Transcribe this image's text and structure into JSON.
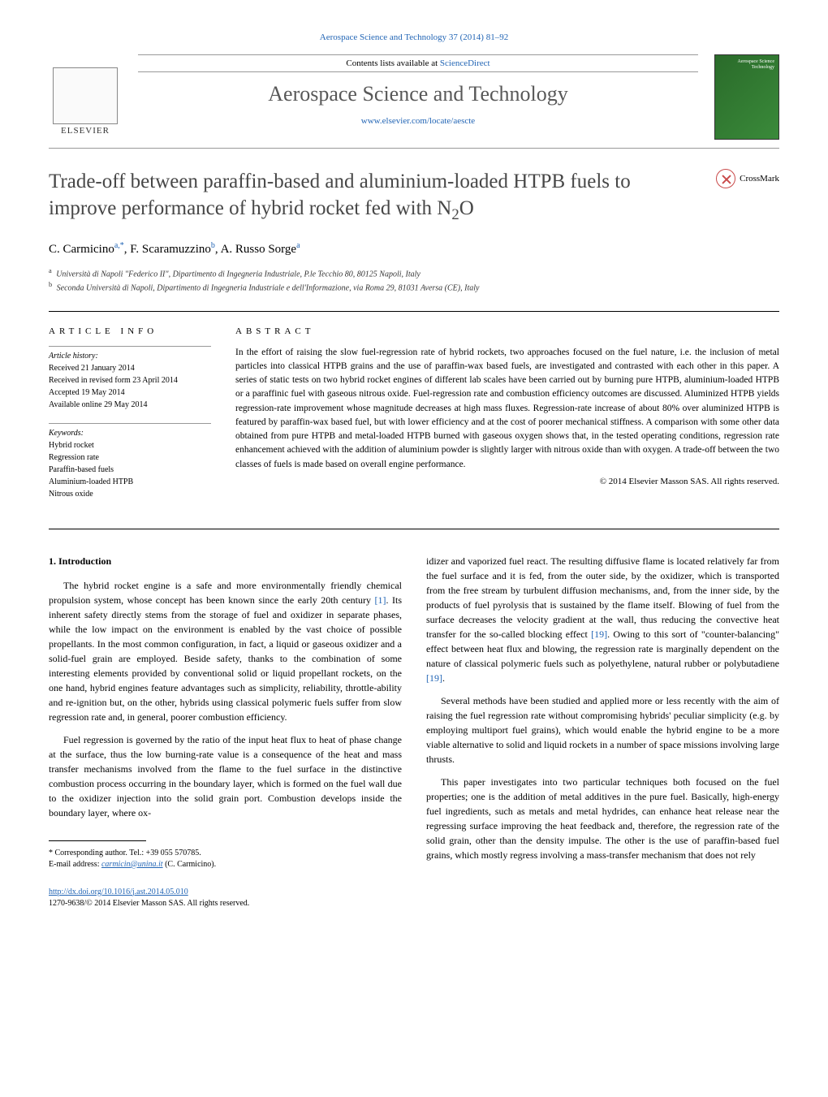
{
  "header": {
    "citation": "Aerospace Science and Technology 37 (2014) 81–92",
    "contents_text": "Contents lists available at ",
    "contents_link": "ScienceDirect",
    "journal_name": "Aerospace Science and Technology",
    "journal_url": "www.elsevier.com/locate/aescte",
    "elsevier_label": "ELSEVIER",
    "cover_label": "Aerospace Science Technology"
  },
  "article": {
    "title_html": "Trade-off between paraffin-based and aluminium-loaded HTPB fuels to improve performance of hybrid rocket fed with N₂O",
    "crossmark_label": "CrossMark",
    "authors_html": "C. Carmicino",
    "author_sup_a": "a,",
    "author_star": "*",
    "author2": ", F. Scaramuzzino",
    "author_sup_b": "b",
    "author3": ", A. Russo Sorge",
    "author_sup_a2": "a",
    "affiliations": {
      "a": "Università di Napoli \"Federico II\", Dipartimento di Ingegneria Industriale, P.le Tecchio 80, 80125 Napoli, Italy",
      "b": "Seconda Università di Napoli, Dipartimento di Ingegneria Industriale e dell'Informazione, via Roma 29, 81031 Aversa (CE), Italy"
    }
  },
  "info": {
    "label": "ARTICLE INFO",
    "history_label": "Article history:",
    "received": "Received 21 January 2014",
    "revised": "Received in revised form 23 April 2014",
    "accepted": "Accepted 19 May 2014",
    "online": "Available online 29 May 2014",
    "keywords_label": "Keywords:",
    "keywords": [
      "Hybrid rocket",
      "Regression rate",
      "Paraffin-based fuels",
      "Aluminium-loaded HTPB",
      "Nitrous oxide"
    ]
  },
  "abstract": {
    "label": "ABSTRACT",
    "text": "In the effort of raising the slow fuel-regression rate of hybrid rockets, two approaches focused on the fuel nature, i.e. the inclusion of metal particles into classical HTPB grains and the use of paraffin-wax based fuels, are investigated and contrasted with each other in this paper. A series of static tests on two hybrid rocket engines of different lab scales have been carried out by burning pure HTPB, aluminium-loaded HTPB or a paraffinic fuel with gaseous nitrous oxide. Fuel-regression rate and combustion efficiency outcomes are discussed. Aluminized HTPB yields regression-rate improvement whose magnitude decreases at high mass fluxes. Regression-rate increase of about 80% over aluminized HTPB is featured by paraffin-wax based fuel, but with lower efficiency and at the cost of poorer mechanical stiffness. A comparison with some other data obtained from pure HTPB and metal-loaded HTPB burned with gaseous oxygen shows that, in the tested operating conditions, regression rate enhancement achieved with the addition of aluminium powder is slightly larger with nitrous oxide than with oxygen. A trade-off between the two classes of fuels is made based on overall engine performance.",
    "copyright": "© 2014 Elsevier Masson SAS. All rights reserved."
  },
  "body": {
    "section_num": "1. Introduction",
    "col1_p1": "The hybrid rocket engine is a safe and more environmentally friendly chemical propulsion system, whose concept has been known since the early 20th century [1]. Its inherent safety directly stems from the storage of fuel and oxidizer in separate phases, while the low impact on the environment is enabled by the vast choice of possible propellants. In the most common configuration, in fact, a liquid or gaseous oxidizer and a solid-fuel grain are employed. Beside safety, thanks to the combination of some interesting elements provided by conventional solid or liquid propellant rockets, on the one hand, hybrid engines feature advantages such as simplicity, reliability, throttle-ability and re-ignition but, on the other, hybrids using classical polymeric fuels suffer from slow regression rate and, in general, poorer combustion efficiency.",
    "col1_p2": "Fuel regression is governed by the ratio of the input heat flux to heat of phase change at the surface, thus the low burning-rate value is a consequence of the heat and mass transfer mechanisms involved from the flame to the fuel surface in the distinctive combustion process occurring in the boundary layer, which is formed on the fuel wall due to the oxidizer injection into the solid grain port. Combustion develops inside the boundary layer, where ox-",
    "col2_p1": "idizer and vaporized fuel react. The resulting diffusive flame is located relatively far from the fuel surface and it is fed, from the outer side, by the oxidizer, which is transported from the free stream by turbulent diffusion mechanisms, and, from the inner side, by the products of fuel pyrolysis that is sustained by the flame itself. Blowing of fuel from the surface decreases the velocity gradient at the wall, thus reducing the convective heat transfer for the so-called blocking effect [19]. Owing to this sort of \"counter-balancing\" effect between heat flux and blowing, the regression rate is marginally dependent on the nature of classical polymeric fuels such as polyethylene, natural rubber or polybutadiene [19].",
    "col2_p2": "Several methods have been studied and applied more or less recently with the aim of raising the fuel regression rate without compromising hybrids' peculiar simplicity (e.g. by employing multiport fuel grains), which would enable the hybrid engine to be a more viable alternative to solid and liquid rockets in a number of space missions involving large thrusts.",
    "col2_p3": "This paper investigates into two particular techniques both focused on the fuel properties; one is the addition of metal additives in the pure fuel. Basically, high-energy fuel ingredients, such as metals and metal hydrides, can enhance heat release near the regressing surface improving the heat feedback and, therefore, the regression rate of the solid grain, other than the density impulse. The other is the use of paraffin-based fuel grains, which mostly regress involving a mass-transfer mechanism that does not rely"
  },
  "footnote": {
    "corresponding": "Corresponding author. Tel.: +39 055 570785.",
    "email_label": "E-mail address:",
    "email": "carmicin@unina.it",
    "email_name": "(C. Carmicino)."
  },
  "doi": {
    "url": "http://dx.doi.org/10.1016/j.ast.2014.05.010",
    "issn_copyright": "1270-9638/© 2014 Elsevier Masson SAS. All rights reserved."
  },
  "colors": {
    "link": "#2265b5",
    "title": "#474747",
    "journal_title": "#585858"
  }
}
